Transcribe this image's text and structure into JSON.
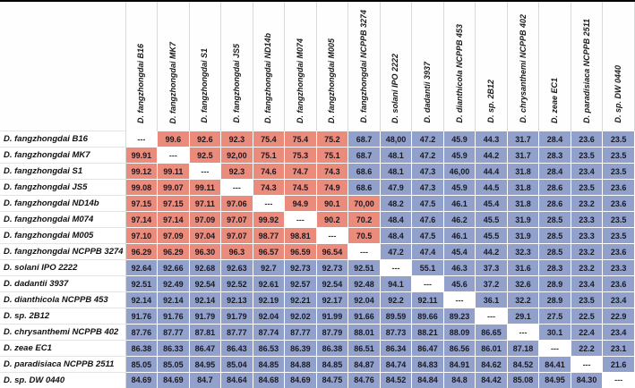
{
  "table": {
    "corner_label": "",
    "diagonal_marker": "---",
    "colors": {
      "same_species_red": "#eb8b7b",
      "different_species_blue": "#92a1cc",
      "diagonal_white": "#ffffff",
      "grid_gray": "#d9d9d9",
      "outer_border_black": "#000000"
    },
    "columns": [
      "D. fangzhongdai B16",
      "D. fangzhongdai MK7",
      "D. fangzhongdai S1",
      "D. fangzhongdai JS5",
      "D. fangzhongdai ND14b",
      "D. fangzhongdai M074",
      "D. fangzhongdai M005",
      "D. fangzhongdai NCPPB 3274",
      "D. solani IPO 2222",
      "D. dadantii 3937",
      "D. dianthicola NCPPB 453",
      "D. sp. 2B12",
      "D. chrysanthemi NCPPB 402",
      "D. zeae EC1",
      "D. paradisiaca NCPPB 2511",
      "D. sp. DW 0440"
    ],
    "rows": [
      {
        "label": "D. fangzhongdai B16",
        "bg": "wrrrrrrbbbbbbbbb",
        "values": [
          "---",
          "99.6",
          "92.6",
          "92.3",
          "75.4",
          "75.4",
          "75.2",
          "68.7",
          "48,00",
          "47.2",
          "45.9",
          "44.3",
          "31.7",
          "28.4",
          "23.6",
          "23.5"
        ]
      },
      {
        "label": "D. fangzhongdai MK7",
        "bg": "rwrrrrrbbbbbbbbb",
        "values": [
          "99.91",
          "---",
          "92.5",
          "92,00",
          "75.1",
          "75.3",
          "75.1",
          "68.7",
          "48.1",
          "47.2",
          "45.9",
          "44.2",
          "31.7",
          "28.3",
          "23.5",
          "23.5"
        ]
      },
      {
        "label": "D. fangzhongdai S1",
        "bg": "rrwrrrrbbbbbbbbb",
        "values": [
          "99.12",
          "99.11",
          "---",
          "92.3",
          "74.6",
          "74.7",
          "74.3",
          "68.6",
          "48.1",
          "47.3",
          "46,00",
          "44.4",
          "31.8",
          "28.4",
          "23.4",
          "23.5"
        ]
      },
      {
        "label": "D. fangzhongdai JS5",
        "bg": "rrrwrrrbbbbbbbbb",
        "values": [
          "99.08",
          "99.07",
          "99.11",
          "---",
          "74.3",
          "74.5",
          "74.9",
          "68.6",
          "47.9",
          "47.3",
          "45.9",
          "44.5",
          "31.8",
          "28.6",
          "23.5",
          "23.6"
        ]
      },
      {
        "label": "D. fangzhongdai ND14b",
        "bg": "rrrrwrrrbbbbbbbb",
        "values": [
          "97.15",
          "97.15",
          "97.11",
          "97.06",
          "---",
          "94.9",
          "90.1",
          "70,00",
          "48.2",
          "47.5",
          "46.1",
          "45.4",
          "31.8",
          "28.6",
          "23.2",
          "23.6"
        ]
      },
      {
        "label": "D. fangzhongdai M074",
        "bg": "rrrrrwrrbbbbbbbb",
        "values": [
          "97.14",
          "97.14",
          "97.09",
          "97.07",
          "99.92",
          "---",
          "90.2",
          "70.2",
          "48.4",
          "47.6",
          "46.2",
          "45.5",
          "31.9",
          "28.5",
          "23.3",
          "23.5"
        ]
      },
      {
        "label": "D. fangzhongdai M005",
        "bg": "rrrrrrwrbbbbbbbb",
        "values": [
          "97.10",
          "97.09",
          "97.04",
          "97.07",
          "98.77",
          "98.81",
          "---",
          "70.5",
          "48.4",
          "47.5",
          "46.1",
          "45.5",
          "31.9",
          "28.5",
          "23.3",
          "23.5"
        ]
      },
      {
        "label": "D. fangzhongdai NCPPB 3274",
        "bg": "rrrrrrrwbbbbbbbb",
        "values": [
          "96.29",
          "96.29",
          "96.30",
          "96.3",
          "96.57",
          "96.59",
          "96.54",
          "---",
          "47.2",
          "47.4",
          "45.4",
          "44.2",
          "32.3",
          "28.5",
          "23.2",
          "23.6"
        ]
      },
      {
        "label": "D. solani IPO 2222",
        "bg": "bbbbbbbbwbbbbbbb",
        "values": [
          "92.64",
          "92.66",
          "92.68",
          "92.63",
          "92.7",
          "92.73",
          "92.73",
          "92.51",
          "---",
          "55.1",
          "46.3",
          "37.3",
          "31.6",
          "28.3",
          "23.2",
          "23.3"
        ]
      },
      {
        "label": "D. dadantii 3937",
        "bg": "bbbbbbbbbwbbbbbb",
        "values": [
          "92.51",
          "92.49",
          "92.54",
          "92.52",
          "92.61",
          "92.57",
          "92.54",
          "92.48",
          "94.1",
          "---",
          "45.6",
          "37.2",
          "32.6",
          "28.9",
          "23.4",
          "23.6"
        ]
      },
      {
        "label": "D. dianthicola NCPPB 453",
        "bg": "bbbbbbbbbbwbbbbb",
        "values": [
          "92.14",
          "92.14",
          "92.14",
          "92.13",
          "92.19",
          "92.21",
          "92.17",
          "92.04",
          "92.2",
          "92.11",
          "---",
          "36.1",
          "32.2",
          "28.9",
          "23.5",
          "23.4"
        ]
      },
      {
        "label": "D. sp. 2B12",
        "bg": "bbbbbbbbbbbwbbbb",
        "values": [
          "91.76",
          "91.76",
          "91.79",
          "91.79",
          "92.04",
          "92.02",
          "91.99",
          "91.66",
          "89.59",
          "89.66",
          "89.23",
          "---",
          "29.1",
          "27.5",
          "22.5",
          "22.9"
        ]
      },
      {
        "label": "D. chrysanthemi NCPPB 402",
        "bg": "bbbbbbbbbbbbwbbb",
        "values": [
          "87.76",
          "87.77",
          "87.81",
          "87.77",
          "87.74",
          "87.77",
          "87.79",
          "88.01",
          "87.73",
          "88.21",
          "88.09",
          "86.65",
          "---",
          "30.1",
          "22.4",
          "23.4"
        ]
      },
      {
        "label": "D. zeae EC1",
        "bg": "bbbbbbbbbbbbbwbb",
        "values": [
          "86.38",
          "86.33",
          "86.47",
          "86.43",
          "86.53",
          "86.39",
          "86.38",
          "86.51",
          "86.34",
          "86.47",
          "86.56",
          "86.01",
          "87.18",
          "---",
          "22.2",
          "23.1"
        ]
      },
      {
        "label": "D. paradisiaca NCPPB 2511",
        "bg": "bbbbbbbbbbbbbbwb",
        "values": [
          "85.05",
          "85.05",
          "84.95",
          "85.04",
          "84.85",
          "84.88",
          "84.85",
          "84.87",
          "84.74",
          "84.83",
          "84.91",
          "84.62",
          "84.52",
          "84.41",
          "---",
          "21.6"
        ]
      },
      {
        "label": "D. sp. DW 0440",
        "bg": "bbbbbbbbbbbbbbbw",
        "values": [
          "84.69",
          "84.69",
          "84.7",
          "84.64",
          "84.68",
          "84.69",
          "84.75",
          "84.76",
          "84.52",
          "84.84",
          "84.8",
          "84.42",
          "85.08",
          "84.95",
          "84.30",
          "---"
        ]
      }
    ]
  }
}
